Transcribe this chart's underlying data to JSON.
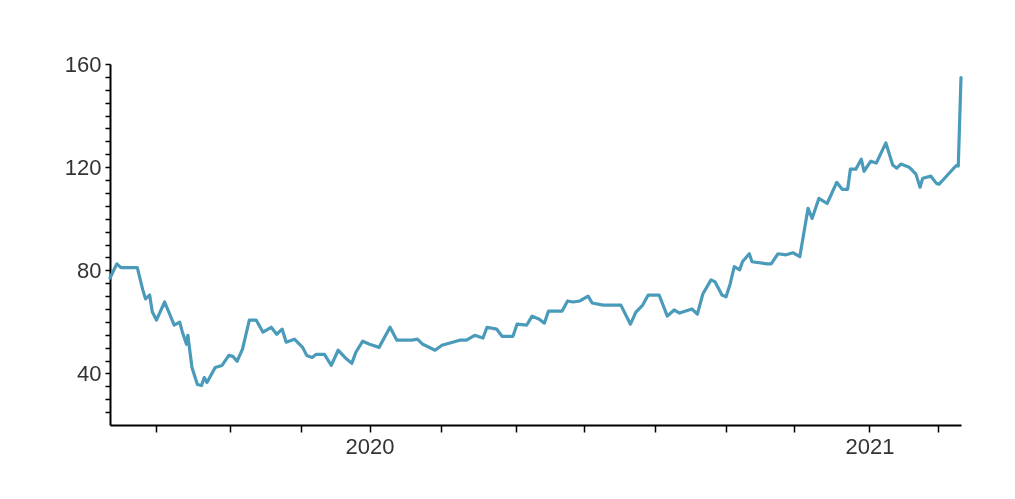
{
  "chart_data": {
    "type": "line",
    "x": [
      "2019-06-25",
      "2019-06-30",
      "2019-07-03",
      "2019-07-15",
      "2019-07-19",
      "2019-07-21",
      "2019-07-24",
      "2019-07-26",
      "2019-07-29",
      "2019-08-04",
      "2019-08-11",
      "2019-08-15",
      "2019-08-17",
      "2019-08-20",
      "2019-08-21",
      "2019-08-24",
      "2019-08-28",
      "2019-08-31",
      "2019-09-02",
      "2019-09-04",
      "2019-09-10",
      "2019-09-15",
      "2019-09-20",
      "2019-09-23",
      "2019-09-26",
      "2019-09-30",
      "2019-10-05",
      "2019-10-10",
      "2019-10-15",
      "2019-10-21",
      "2019-10-25",
      "2019-10-29",
      "2019-11-01",
      "2019-11-07",
      "2019-11-13",
      "2019-11-16",
      "2019-11-20",
      "2019-11-23",
      "2019-11-29",
      "2019-12-04",
      "2019-12-09",
      "2019-12-14",
      "2019-12-19",
      "2019-12-22",
      "2019-12-27",
      "2020-01-01",
      "2020-01-08",
      "2020-01-16",
      "2020-01-21",
      "2020-02-01",
      "2020-02-05",
      "2020-02-09",
      "2020-02-18",
      "2020-02-23",
      "2020-03-07",
      "2020-03-12",
      "2020-03-18",
      "2020-03-24",
      "2020-03-27",
      "2020-04-03",
      "2020-04-07",
      "2020-04-15",
      "2020-04-18",
      "2020-04-25",
      "2020-04-29",
      "2020-05-04",
      "2020-05-08",
      "2020-05-11",
      "2020-05-21",
      "2020-05-25",
      "2020-05-29",
      "2020-06-03",
      "2020-06-09",
      "2020-06-12",
      "2020-06-20",
      "2020-07-03",
      "2020-07-10",
      "2020-07-14",
      "2020-07-19",
      "2020-07-23",
      "2020-07-31",
      "2020-08-06",
      "2020-08-11",
      "2020-08-15",
      "2020-08-24",
      "2020-08-28",
      "2020-09-01",
      "2020-09-07",
      "2020-09-10",
      "2020-09-15",
      "2020-09-18",
      "2020-09-21",
      "2020-09-24",
      "2020-09-28",
      "2020-09-30",
      "2020-10-05",
      "2020-10-07",
      "2020-10-18",
      "2020-10-21",
      "2020-10-26",
      "2020-11-01",
      "2020-11-06",
      "2020-11-11",
      "2020-11-17",
      "2020-11-20",
      "2020-11-25",
      "2020-12-01",
      "2020-12-08",
      "2020-12-12",
      "2020-12-16",
      "2020-12-18",
      "2020-12-22",
      "2020-12-26",
      "2020-12-28",
      "2021-01-02",
      "2021-01-06",
      "2021-01-13",
      "2021-01-18",
      "2021-01-21",
      "2021-01-24",
      "2021-01-30",
      "2021-02-04",
      "2021-02-07",
      "2021-02-09",
      "2021-02-15",
      "2021-02-19",
      "2021-02-21",
      "2021-02-25",
      "2021-03-03",
      "2021-03-06",
      "2021-03-07",
      "2021-03-09"
    ],
    "series": [
      {
        "color": "#4a9aba",
        "values": [
          77,
          82.5,
          81,
          81,
          72.4,
          68.9,
          70.4,
          63.8,
          60.7,
          67.7,
          58.7,
          59.9,
          56,
          51.3,
          54.8,
          42.3,
          35.7,
          35.3,
          38.4,
          36.5,
          42.3,
          43.1,
          47,
          46.6,
          44.7,
          49.4,
          60.7,
          60.7,
          56,
          57.9,
          55.2,
          57.2,
          52.1,
          53.3,
          50.1,
          47,
          46.2,
          47.4,
          47.4,
          43.1,
          49,
          46.2,
          43.9,
          48.2,
          52.5,
          51.3,
          50.1,
          57.9,
          52.9,
          52.9,
          53.3,
          51.3,
          49,
          50.9,
          52.9,
          52.9,
          54.8,
          53.7,
          57.9,
          57.2,
          54.4,
          54.4,
          59.1,
          58.7,
          62.2,
          61.1,
          59.5,
          64.2,
          64.2,
          68.1,
          67.7,
          68.1,
          70,
          67.3,
          66.5,
          66.5,
          59.1,
          63.8,
          66.5,
          70.4,
          70.4,
          62.2,
          64.6,
          63.4,
          65,
          63,
          70.8,
          76.3,
          75.5,
          70.4,
          69.7,
          74.7,
          81.4,
          80.2,
          83.3,
          86.4,
          83.3,
          82.5,
          82.5,
          86.4,
          86,
          86.8,
          85.3,
          104,
          100.1,
          107.9,
          105.9,
          114.1,
          111.4,
          111.4,
          119.2,
          119.2,
          123.1,
          118.4,
          122.3,
          121.6,
          129.4,
          120.8,
          119.6,
          121.2,
          120,
          117.3,
          112.2,
          115.7,
          116.5,
          113.7,
          113.4,
          115.7,
          119.2,
          120.8,
          120.4,
          154.7
        ]
      }
    ],
    "xlim": [
      "2019-06-25",
      "2021-03-09"
    ],
    "xticks": [
      {
        "value": "2019-07-29",
        "label": null
      },
      {
        "value": "2019-09-21",
        "label": null
      },
      {
        "value": "2019-11-12",
        "label": null
      },
      {
        "value": "2020-01-01",
        "label": "2020"
      },
      {
        "value": "2020-02-22",
        "label": null
      },
      {
        "value": "2020-04-17",
        "label": null
      },
      {
        "value": "2020-06-06",
        "label": null
      },
      {
        "value": "2020-07-28",
        "label": null
      },
      {
        "value": "2020-09-18",
        "label": null
      },
      {
        "value": "2020-11-07",
        "label": null
      },
      {
        "value": "2021-01-01",
        "label": "2021"
      },
      {
        "value": "2021-02-20",
        "label": null
      }
    ],
    "ylim": [
      20,
      160
    ],
    "yticks": [
      {
        "value": 25,
        "label": null
      },
      {
        "value": 30,
        "label": null
      },
      {
        "value": 35,
        "label": null
      },
      40,
      {
        "value": 45,
        "label": null
      },
      {
        "value": 50,
        "label": null
      },
      {
        "value": 55,
        "label": null
      },
      {
        "value": 60,
        "label": null
      },
      {
        "value": 65,
        "label": null
      },
      {
        "value": 70,
        "label": null
      },
      {
        "value": 75,
        "label": null
      },
      80,
      {
        "value": 85,
        "label": null
      },
      {
        "value": 90,
        "label": null
      },
      {
        "value": 95,
        "label": null
      },
      {
        "value": 100,
        "label": null
      },
      {
        "value": 105,
        "label": null
      },
      {
        "value": 110,
        "label": null
      },
      {
        "value": 115,
        "label": null
      },
      120,
      {
        "value": 125,
        "label": null
      },
      {
        "value": 130,
        "label": null
      },
      {
        "value": 135,
        "label": null
      },
      {
        "value": 140,
        "label": null
      },
      {
        "value": 145,
        "label": null
      },
      {
        "value": 150,
        "label": null
      },
      {
        "value": 155,
        "label": null
      },
      160
    ],
    "grid": false,
    "marker": "none",
    "line_style": "solid"
  }
}
